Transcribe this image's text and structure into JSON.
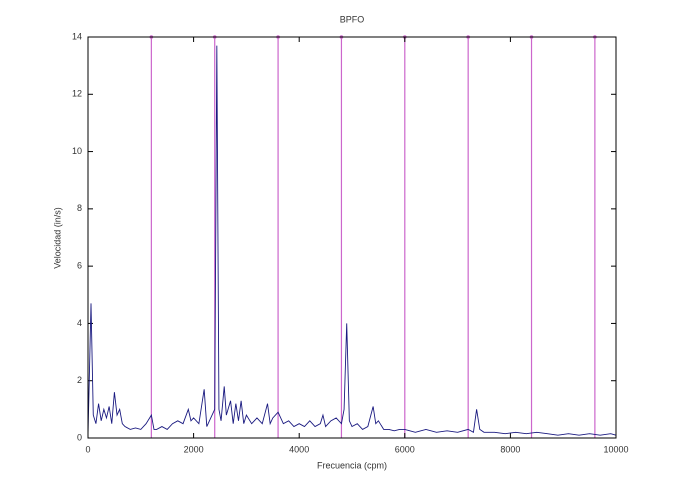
{
  "chart_data": {
    "type": "line",
    "title": "BPFO",
    "xlabel": "Frecuencia (cpm)",
    "ylabel": "Velocidad (in/s)",
    "xlim": [
      0,
      10000
    ],
    "ylim": [
      0,
      14
    ],
    "xticks": [
      0,
      2000,
      4000,
      6000,
      8000,
      10000
    ],
    "yticks": [
      0,
      2,
      4,
      6,
      8,
      10,
      12,
      14
    ],
    "vertical_lines": {
      "color": "#cc66cc",
      "x": [
        1200,
        2400,
        3600,
        4800,
        6000,
        7200,
        8400,
        9600
      ]
    },
    "series": [
      {
        "color": "#1a1a80",
        "x": [
          0,
          57,
          100,
          150,
          200,
          250,
          300,
          350,
          400,
          450,
          500,
          550,
          600,
          650,
          700,
          800,
          900,
          1000,
          1100,
          1200,
          1250,
          1300,
          1400,
          1500,
          1600,
          1700,
          1800,
          1900,
          1950,
          2000,
          2100,
          2200,
          2250,
          2300,
          2350,
          2400,
          2440,
          2480,
          2520,
          2580,
          2620,
          2700,
          2750,
          2800,
          2850,
          2900,
          2950,
          3000,
          3100,
          3200,
          3300,
          3400,
          3450,
          3500,
          3600,
          3700,
          3800,
          3900,
          4000,
          4100,
          4200,
          4300,
          4400,
          4450,
          4500,
          4600,
          4700,
          4800,
          4850,
          4900,
          4950,
          5000,
          5100,
          5200,
          5300,
          5400,
          5450,
          5500,
          5600,
          5700,
          5800,
          5900,
          6000,
          6200,
          6400,
          6600,
          6800,
          7000,
          7200,
          7300,
          7360,
          7420,
          7500,
          7700,
          7900,
          8100,
          8300,
          8500,
          8700,
          8900,
          9100,
          9300,
          9500,
          9700,
          9900,
          10000
        ],
        "values": [
          0.1,
          4.7,
          0.8,
          0.5,
          1.2,
          0.6,
          1.0,
          0.7,
          1.1,
          0.5,
          1.6,
          0.8,
          1.0,
          0.5,
          0.4,
          0.3,
          0.35,
          0.3,
          0.5,
          0.8,
          0.3,
          0.3,
          0.4,
          0.3,
          0.5,
          0.6,
          0.5,
          1.0,
          0.6,
          0.7,
          0.5,
          1.7,
          0.4,
          0.6,
          0.8,
          1.0,
          13.7,
          1.0,
          0.6,
          1.8,
          0.8,
          1.3,
          0.5,
          1.2,
          0.6,
          1.3,
          0.5,
          0.8,
          0.5,
          0.7,
          0.5,
          1.2,
          0.5,
          0.7,
          0.9,
          0.5,
          0.6,
          0.4,
          0.5,
          0.4,
          0.6,
          0.4,
          0.5,
          0.8,
          0.4,
          0.6,
          0.7,
          0.5,
          1.0,
          4.0,
          0.6,
          0.4,
          0.5,
          0.3,
          0.4,
          1.1,
          0.5,
          0.6,
          0.3,
          0.3,
          0.25,
          0.3,
          0.3,
          0.2,
          0.3,
          0.2,
          0.25,
          0.2,
          0.3,
          0.2,
          1.0,
          0.3,
          0.2,
          0.2,
          0.15,
          0.2,
          0.15,
          0.2,
          0.15,
          0.1,
          0.15,
          0.1,
          0.15,
          0.1,
          0.15,
          0.1
        ]
      }
    ]
  }
}
